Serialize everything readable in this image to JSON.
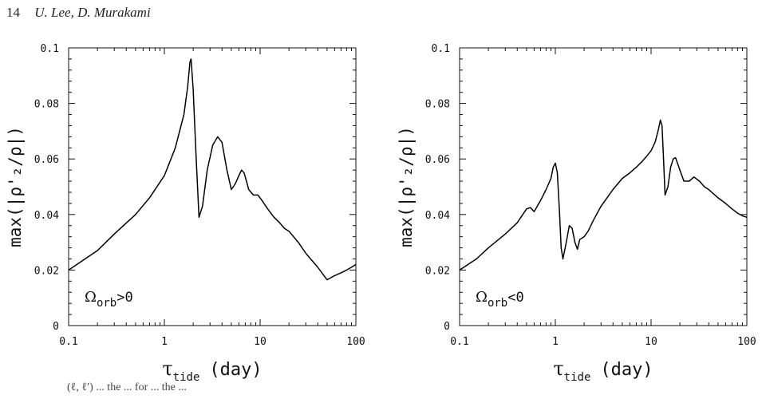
{
  "header": {
    "page_number": "14",
    "authors": "U. Lee, D. Murakami"
  },
  "caption_fragment": "(ℓ, ℓ′) ... the ... for ... the ...",
  "chart_data": [
    {
      "type": "line",
      "id": "left",
      "xscale": "log",
      "xlim": [
        0.1,
        100
      ],
      "ylim": [
        0,
        0.1
      ],
      "xticks": [
        "0.1",
        "1",
        "10",
        "100"
      ],
      "yticks": [
        "0",
        "0.02",
        "0.04",
        "0.06",
        "0.08",
        "0.1"
      ],
      "ylabel": "max(|ρ'₂/ρ|)",
      "xlabel": {
        "symbol": "τ",
        "subscript": "tide",
        "rest": "(day)"
      },
      "annotation": {
        "symbol": "Ω",
        "subscript": "orb",
        "rest": ">0"
      },
      "series": [
        {
          "x": [
            0.1,
            0.2,
            0.3,
            0.5,
            0.7,
            1.0,
            1.3,
            1.6,
            1.75,
            1.85,
            1.9,
            2.0,
            2.15,
            2.3,
            2.5,
            2.8,
            3.2,
            3.6,
            4.0,
            4.5,
            5.0,
            5.5,
            6.0,
            6.4,
            6.8,
            7.2,
            7.6,
            8.5,
            9.5,
            10.5,
            12,
            14,
            16,
            18,
            20,
            25,
            30,
            40,
            50,
            60,
            70,
            80,
            90,
            100
          ],
          "y": [
            0.02,
            0.027,
            0.033,
            0.04,
            0.046,
            0.054,
            0.064,
            0.076,
            0.086,
            0.095,
            0.096,
            0.085,
            0.06,
            0.039,
            0.043,
            0.056,
            0.065,
            0.068,
            0.066,
            0.056,
            0.049,
            0.051,
            0.054,
            0.056,
            0.055,
            0.052,
            0.049,
            0.047,
            0.047,
            0.045,
            0.042,
            0.039,
            0.037,
            0.035,
            0.034,
            0.03,
            0.026,
            0.021,
            0.0165,
            0.018,
            0.019,
            0.02,
            0.021,
            0.022
          ]
        }
      ]
    },
    {
      "type": "line",
      "id": "right",
      "xscale": "log",
      "xlim": [
        0.1,
        100
      ],
      "ylim": [
        0,
        0.1
      ],
      "xticks": [
        "0.1",
        "1",
        "10",
        "100"
      ],
      "yticks": [
        "0",
        "0.02",
        "0.04",
        "0.06",
        "0.08",
        "0.1"
      ],
      "ylabel": "max(|ρ'₂/ρ|)",
      "xlabel": {
        "symbol": "τ",
        "subscript": "tide",
        "rest": "(day)"
      },
      "annotation": {
        "symbol": "Ω",
        "subscript": "orb",
        "rest": "<0"
      },
      "series": [
        {
          "x": [
            0.1,
            0.15,
            0.2,
            0.3,
            0.4,
            0.5,
            0.55,
            0.6,
            0.7,
            0.8,
            0.9,
            0.95,
            1.0,
            1.05,
            1.1,
            1.15,
            1.2,
            1.3,
            1.4,
            1.5,
            1.6,
            1.7,
            1.8,
            2.0,
            2.2,
            2.5,
            3.0,
            4.0,
            5.0,
            6.0,
            7.0,
            8.0,
            9.0,
            10.0,
            11.0,
            12.0,
            12.5,
            13.0,
            13.5,
            14.0,
            15.0,
            16.0,
            17.0,
            18.0,
            20.0,
            22.0,
            25.0,
            28.0,
            32.0,
            36.0,
            40.0,
            50.0,
            60.0,
            70.0,
            80.0,
            90.0,
            100
          ],
          "y": [
            0.02,
            0.024,
            0.028,
            0.033,
            0.037,
            0.042,
            0.0425,
            0.041,
            0.045,
            0.049,
            0.053,
            0.057,
            0.0585,
            0.055,
            0.042,
            0.028,
            0.024,
            0.03,
            0.036,
            0.035,
            0.03,
            0.0275,
            0.031,
            0.032,
            0.034,
            0.038,
            0.043,
            0.049,
            0.053,
            0.055,
            0.057,
            0.059,
            0.061,
            0.063,
            0.066,
            0.071,
            0.074,
            0.072,
            0.06,
            0.047,
            0.05,
            0.057,
            0.06,
            0.0605,
            0.056,
            0.052,
            0.052,
            0.0535,
            0.052,
            0.05,
            0.049,
            0.046,
            0.044,
            0.042,
            0.0405,
            0.0395,
            0.039
          ]
        }
      ]
    }
  ]
}
